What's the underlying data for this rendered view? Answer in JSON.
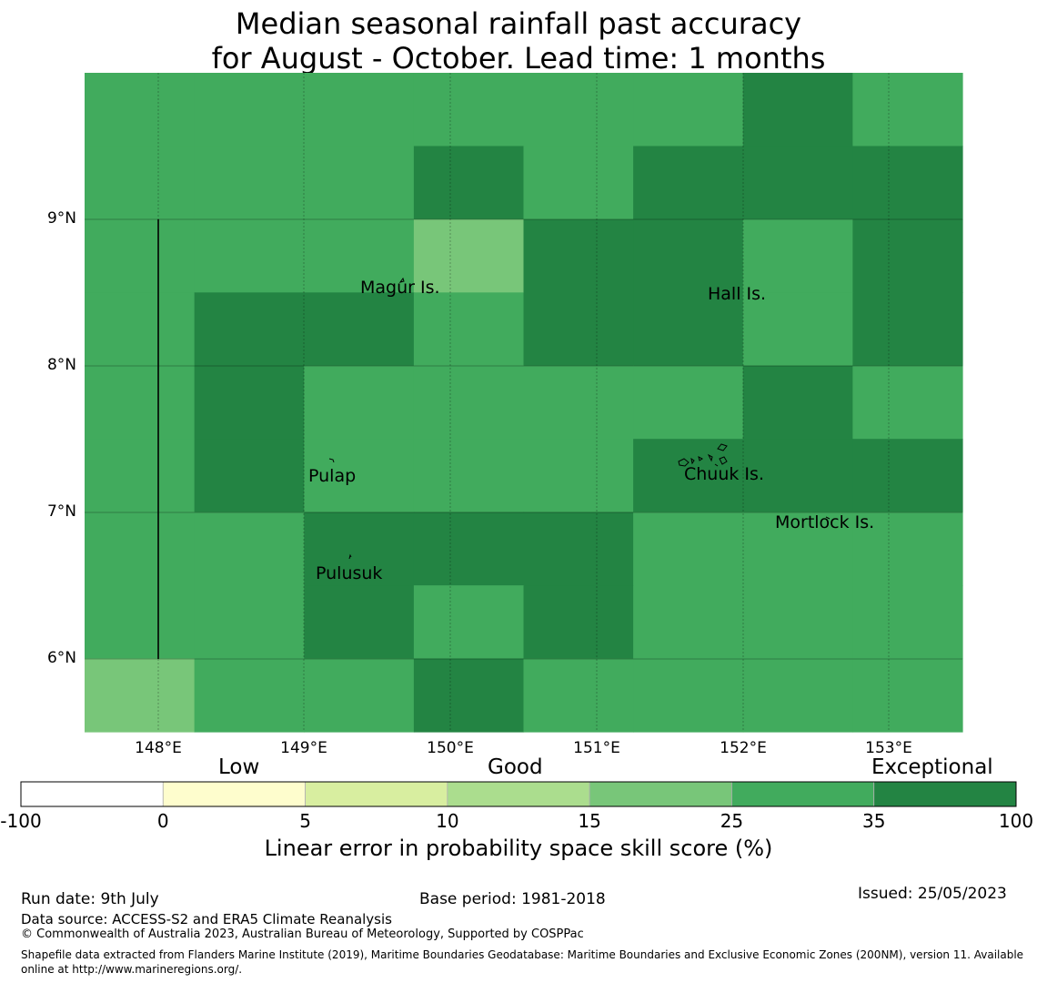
{
  "title": {
    "line1": "Median seasonal rainfall past accuracy",
    "line2": "for August - October. Lead time: 1 months"
  },
  "map": {
    "latitude_labels": [
      "9°N",
      "8°N",
      "7°N",
      "6°N"
    ],
    "longitude_labels": [
      "148°E",
      "149°E",
      "150°E",
      "151°E",
      "152°E",
      "153°E"
    ],
    "places": [
      "Magur Is.",
      "Hall Is.",
      "Pulap",
      "Chuuk Is.",
      "Mortlock Is.",
      "Pulusuk"
    ],
    "grid_skill_scores": [
      [
        30,
        30,
        30,
        30,
        30,
        30,
        40,
        30
      ],
      [
        30,
        30,
        30,
        40,
        30,
        40,
        40,
        40
      ],
      [
        30,
        30,
        30,
        20,
        40,
        40,
        30,
        40
      ],
      [
        30,
        40,
        40,
        30,
        40,
        40,
        30,
        40
      ],
      [
        30,
        40,
        30,
        30,
        30,
        30,
        40,
        30
      ],
      [
        30,
        40,
        30,
        30,
        30,
        40,
        40,
        40
      ],
      [
        30,
        30,
        40,
        40,
        40,
        30,
        30,
        30
      ],
      [
        30,
        30,
        40,
        30,
        40,
        30,
        30,
        30
      ],
      [
        20,
        30,
        30,
        40,
        30,
        30,
        30,
        30
      ]
    ]
  },
  "colorbar": {
    "categories": [
      "Low",
      "Good",
      "Exceptional"
    ],
    "ticks": [
      "-100",
      "0",
      "5",
      "10",
      "15",
      "25",
      "35",
      "100"
    ],
    "colors": [
      "#ffffff",
      "#fefdcd",
      "#d8eea0",
      "#abdd8e",
      "#78c679",
      "#41ab5d",
      "#238443"
    ],
    "title": "Linear error in probability space skill score (%)"
  },
  "footer": {
    "run_date": "Run date: 9th July",
    "base_period": "Base period: 1981-2018",
    "issued": "Issued: 25/05/2023",
    "data_source": "Data source: ACCESS-S2 and ERA5 Climate Reanalysis",
    "copyright": "© Commonwealth of Australia 2023, Australian Bureau of Meteorology, Supported by COSPPac",
    "shapefile": "Shapefile data extracted from Flanders Marine Institute (2019), Maritime Boundaries Geodatabase: Maritime Boundaries and Exclusive Economic Zones (200NM), version 11. Available online at http://www.marineregions.org/."
  }
}
